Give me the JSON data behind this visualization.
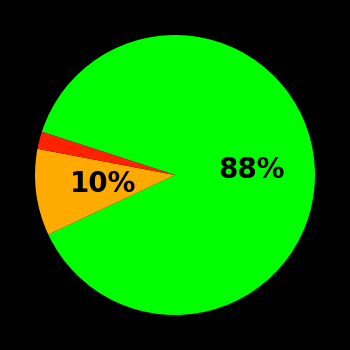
{
  "slices": [
    88,
    10,
    2
  ],
  "colors": [
    "#00ff00",
    "#ffaa00",
    "#ff2200"
  ],
  "labels": [
    "88%",
    "10%",
    ""
  ],
  "background_color": "#000000",
  "text_color": "#000000",
  "startangle": 162,
  "label_fontsize": 20,
  "label_fontweight": "bold",
  "label_radii": [
    0.55,
    0.52,
    0.0
  ]
}
